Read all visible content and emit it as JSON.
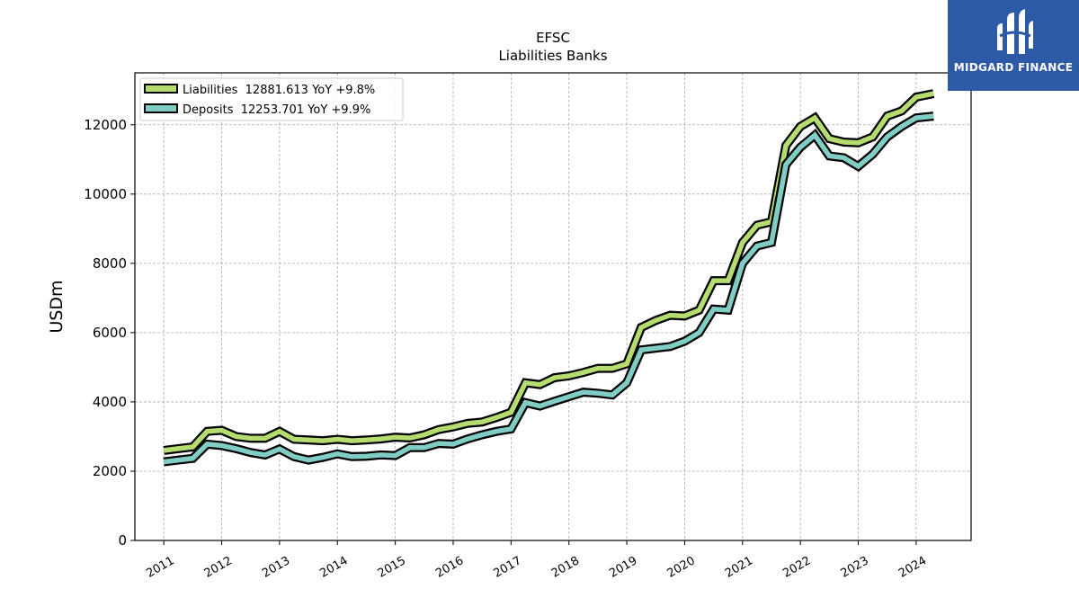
{
  "logo": {
    "brand": "MIDGARD FINANCE",
    "color": "#2d5aa6"
  },
  "chart_data": {
    "type": "line",
    "title": "EFSC",
    "subtitle": "Liabilities Banks",
    "ylabel": "USDm",
    "xlabel": "",
    "ylim": [
      0,
      13500
    ],
    "xlim": [
      2010.5,
      2024.95
    ],
    "y_ticks": [
      0,
      2000,
      4000,
      6000,
      8000,
      10000,
      12000
    ],
    "x_ticks": [
      "2011",
      "2012",
      "2013",
      "2014",
      "2015",
      "2016",
      "2017",
      "2018",
      "2019",
      "2020",
      "2021",
      "2022",
      "2023",
      "2024"
    ],
    "grid": true,
    "legend_position": "top-left",
    "x": [
      2011.0,
      2011.25,
      2011.5,
      2011.75,
      2012.0,
      2012.25,
      2012.5,
      2012.75,
      2013.0,
      2013.25,
      2013.5,
      2013.75,
      2014.0,
      2014.25,
      2014.5,
      2014.75,
      2015.0,
      2015.25,
      2015.5,
      2015.75,
      2016.0,
      2016.25,
      2016.5,
      2016.75,
      2017.0,
      2017.25,
      2017.5,
      2017.75,
      2018.0,
      2018.25,
      2018.5,
      2018.75,
      2019.0,
      2019.25,
      2019.5,
      2019.75,
      2020.0,
      2020.25,
      2020.5,
      2020.75,
      2021.0,
      2021.25,
      2021.5,
      2021.75,
      2022.0,
      2022.25,
      2022.5,
      2022.75,
      2023.0,
      2023.25,
      2023.5,
      2023.75,
      2024.0,
      2024.3
    ],
    "series": [
      {
        "name": "Liabilities",
        "legend": "Liabilities  12881.613 YoY +9.8%",
        "color": "#b5dc6f",
        "values": [
          2600,
          2650,
          2700,
          3150,
          3180,
          3000,
          2950,
          2950,
          3150,
          2920,
          2900,
          2880,
          2920,
          2880,
          2900,
          2930,
          2980,
          2960,
          3050,
          3200,
          3280,
          3380,
          3420,
          3550,
          3700,
          4550,
          4500,
          4700,
          4750,
          4850,
          4970,
          4970,
          5100,
          6150,
          6350,
          6500,
          6480,
          6650,
          7500,
          7500,
          8600,
          9100,
          9200,
          11400,
          11950,
          12200,
          11600,
          11500,
          11480,
          11650,
          12250,
          12400,
          12800,
          12900
        ]
      },
      {
        "name": "Deposits",
        "legend": "Deposits  12253.701 YoY +9.9%",
        "color": "#7fcdc4",
        "values": [
          2270,
          2320,
          2370,
          2780,
          2740,
          2650,
          2540,
          2470,
          2640,
          2420,
          2320,
          2400,
          2500,
          2420,
          2430,
          2470,
          2450,
          2680,
          2680,
          2800,
          2780,
          2930,
          3050,
          3150,
          3220,
          3980,
          3880,
          4020,
          4150,
          4280,
          4250,
          4200,
          4550,
          5500,
          5550,
          5600,
          5750,
          6000,
          6680,
          6650,
          8000,
          8500,
          8600,
          10850,
          11350,
          11700,
          11100,
          11050,
          10800,
          11150,
          11650,
          11950,
          12200,
          12250
        ]
      }
    ]
  }
}
